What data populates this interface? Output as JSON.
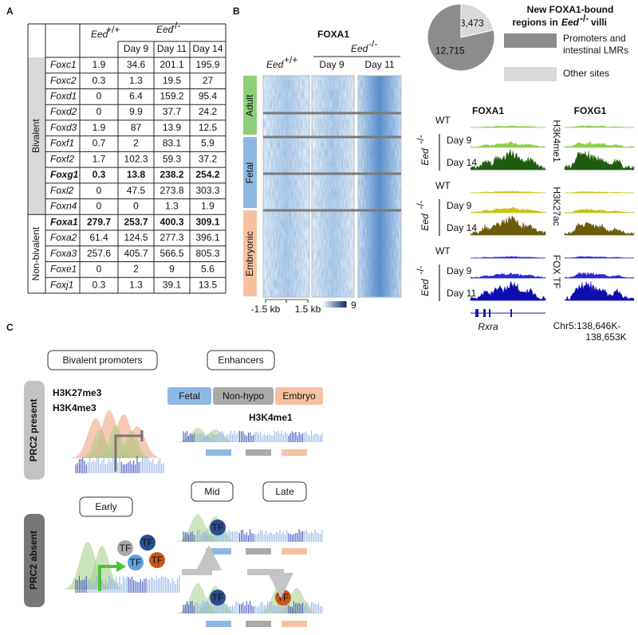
{
  "panel_a": {
    "label": "A",
    "header": {
      "eed": "Eed",
      "wt_sup": "+/+",
      "ko_sup": "-/-",
      "days": [
        "Day 9",
        "Day 11",
        "Day 14"
      ]
    },
    "groups": [
      {
        "name": "Bivalent",
        "rows": [
          {
            "gene": "Foxc1",
            "values": [
              1.9,
              34.6,
              201.1,
              195.9
            ]
          },
          {
            "gene": "Foxc2",
            "values": [
              0.3,
              1.3,
              19.5,
              27
            ]
          },
          {
            "gene": "Foxd1",
            "values": [
              0,
              6.4,
              159.2,
              95.4
            ]
          },
          {
            "gene": "Foxd2",
            "values": [
              0,
              9.9,
              37.7,
              24.2
            ]
          },
          {
            "gene": "Foxd3",
            "values": [
              1.9,
              87,
              13.9,
              12.5
            ]
          },
          {
            "gene": "Foxf1",
            "values": [
              0.7,
              2,
              83.1,
              5.9
            ]
          },
          {
            "gene": "Foxf2",
            "values": [
              1.7,
              102.3,
              59.3,
              37.2
            ]
          },
          {
            "gene": "Foxg1",
            "values": [
              0.3,
              13.8,
              238.2,
              254.2
            ],
            "bold": true
          },
          {
            "gene": "Foxl2",
            "values": [
              0,
              47.5,
              273.8,
              303.3
            ]
          },
          {
            "gene": "Foxn4",
            "values": [
              0,
              0,
              1.3,
              1.9
            ]
          }
        ]
      },
      {
        "name": "Non-bivalent",
        "rows": [
          {
            "gene": "Foxa1",
            "values": [
              279.7,
              253.7,
              400.3,
              309.1
            ],
            "bold": true
          },
          {
            "gene": "Foxa2",
            "values": [
              61.4,
              124.5,
              277.3,
              396.1
            ]
          },
          {
            "gene": "Foxa3",
            "values": [
              257.6,
              405.7,
              566.5,
              805.3
            ]
          },
          {
            "gene": "Foxe1",
            "values": [
              0,
              2,
              9,
              5.6
            ]
          },
          {
            "gene": "Foxj1",
            "values": [
              0.3,
              1.3,
              39.1,
              13.5
            ]
          }
        ]
      }
    ]
  },
  "panel_b": {
    "label": "B",
    "heatmap": {
      "title": "FOXA1",
      "eed": "Eed",
      "wt_sup": "+/+",
      "ko_sup": "-/-",
      "columns": [
        "Day 9",
        "Day 11"
      ],
      "rows": [
        "Adult",
        "Fetal",
        "Embryonic"
      ],
      "axis_left": "-1.5 kb",
      "axis_right": "1.5 kb",
      "colorbar_max": 9
    },
    "pie": {
      "title_lines": [
        "New FOXA1-bound",
        "regions in"
      ],
      "title_gene": "Eed",
      "title_sup": "-/-",
      "title_end": "villi",
      "values": [
        3473,
        12715
      ],
      "value_labels": [
        "3,473",
        "12,715"
      ],
      "names": [
        [
          "Other sites"
        ],
        [
          "Promoters and",
          "intestinal LMRs"
        ]
      ],
      "colors": [
        "#d9d9d9",
        "#8c8c8c"
      ]
    },
    "tracks": {
      "factors": [
        "FOXA1",
        "FOXG1"
      ],
      "wt": "WT",
      "eed": "Eed",
      "ko_sup": "-/-",
      "groups": [
        {
          "mark": "H3K4me1",
          "days": [
            "Day 9",
            "Day 14"
          ],
          "colors": [
            "#8ccf4d",
            "#1f5c10"
          ]
        },
        {
          "mark": "H3K27ac",
          "days": [
            "Day 9",
            "Day 14"
          ],
          "colors": [
            "#c9c21a",
            "#6b5a0a"
          ]
        },
        {
          "mark": "FOX TF",
          "days": [
            "Day 9",
            "Day 11"
          ],
          "colors": [
            "#2a2ad0",
            "#0d0db0"
          ]
        }
      ],
      "gene": "Rxra",
      "locus_lines": [
        "Chr5:138,646K-",
        "138,653K"
      ]
    }
  },
  "panel_c": {
    "label": "C",
    "boxes": {
      "bivalent": "Bivalent promoters",
      "enhancers": "Enhancers",
      "early": "Early",
      "mid": "Mid",
      "late": "Late"
    },
    "marks": {
      "k27": "H3K27me3",
      "k4me3": "H3K4me3",
      "k4me1": "H3K4me1"
    },
    "enhancer_types": [
      "Fetal",
      "Non-hypo",
      "Embryo"
    ],
    "prc2_present": "PRC2 present",
    "prc2_absent": "PRC2 absent",
    "tf": "TF"
  }
}
